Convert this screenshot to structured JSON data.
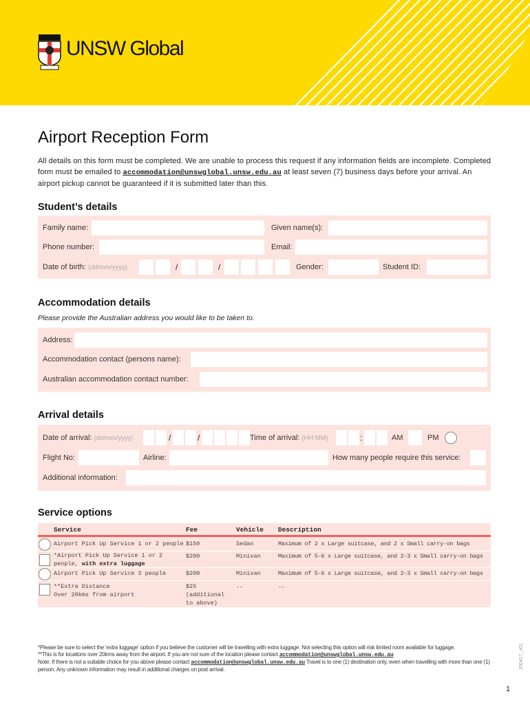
{
  "header": {
    "brand": "UNSW Global",
    "colors": {
      "yellow": "#FFDA00",
      "panel": "#FDE3DE",
      "accent": "#F06060"
    }
  },
  "title": "Airport Reception Form",
  "intro": {
    "part1": "All details on this form must be completed. We are unable to process this request if any information fields are incomplete. Completed form must be emailed to ",
    "email": "accommodation@unswglobal.unsw.edu.au",
    "part2": " at least seven (7) business days before your arrival. An airport pickup cannot be guaranteed if it is submitted later than this."
  },
  "student": {
    "heading": "Student’s details",
    "family": "Family name:",
    "given": "Given name(s):",
    "phone": "Phone number:",
    "email": "Email:",
    "dob": "Date of birth:",
    "dob_hint": "(dd/mm/yyyy)",
    "slash": "/",
    "gender": "Gender:",
    "student_id": "Student ID:"
  },
  "accommodation": {
    "heading": "Accommodation details",
    "subtitle": "Please provide the Australian address you would like to be taken to.",
    "address": "Address:",
    "contact": "Accommodation contact (persons name):",
    "number": "Australian accommodation contact number:"
  },
  "arrival": {
    "heading": "Arrival details",
    "date": "Date of arrival:",
    "date_hint": "(dd/mm/yyyy)",
    "slash": "/",
    "time": "Time of arrival:",
    "time_hint": "(HH:MM)",
    "colon": ":",
    "am": "AM",
    "pm": "PM",
    "flight": "Flight No:",
    "airline": "Airline:",
    "people": "How many people require this service:",
    "additional": "Additional information:"
  },
  "services": {
    "heading": "Service options",
    "columns": [
      "Service",
      "Fee",
      "Vehicle",
      "Description"
    ],
    "rows": [
      {
        "control": "radio",
        "service": "Airport Pick Up Service 1 or 2 people",
        "fee": "$150",
        "vehicle": "Sedan",
        "description": "Maximum of 2 x Large suitcase, and 2 x Small carry-on bags"
      },
      {
        "control": "checkbox",
        "service": "*Airport Pick Up Service 1 or 2 people, ",
        "service_bold": "with extra luggage",
        "fee": "$200",
        "vehicle": "Minivan",
        "description": "Maximum of 5-6 x Large suitcase, and 2-3 x Small carry-on bags"
      },
      {
        "control": "radio",
        "service": "Airport Pick Up Service 3 people",
        "fee": "$200",
        "vehicle": "Minivan",
        "description": "Maximum of 5-6 x Large suitcase, and 2-3 x Small carry-on bags"
      },
      {
        "control": "checkbox",
        "service": "**Extra Distance",
        "service_line2": "Over 20kms from airport",
        "fee": "$25",
        "fee_line2": "(additional to above)",
        "vehicle": "--",
        "description": "--"
      }
    ]
  },
  "footer": {
    "note1": "*Please be sure to select the 'extra luggage' option if you believe the customer will be travelling with extra luggage. Not selecting this option will risk limited room available for luggage.",
    "note2": "**This is for locations over 20kms away from the airport. If you are not sure of the location please contact ",
    "email": "accommodation@unswglobal.unsw.edu.au",
    "note3": "Note: If there is not a suitable choice for you above please contact ",
    "note4": " Travel is to one (1) destination only, even when travelling with more than one (1) person. Any unknown information may result in additional charges on post arrival.",
    "version": "200417_v01",
    "page": "1"
  }
}
